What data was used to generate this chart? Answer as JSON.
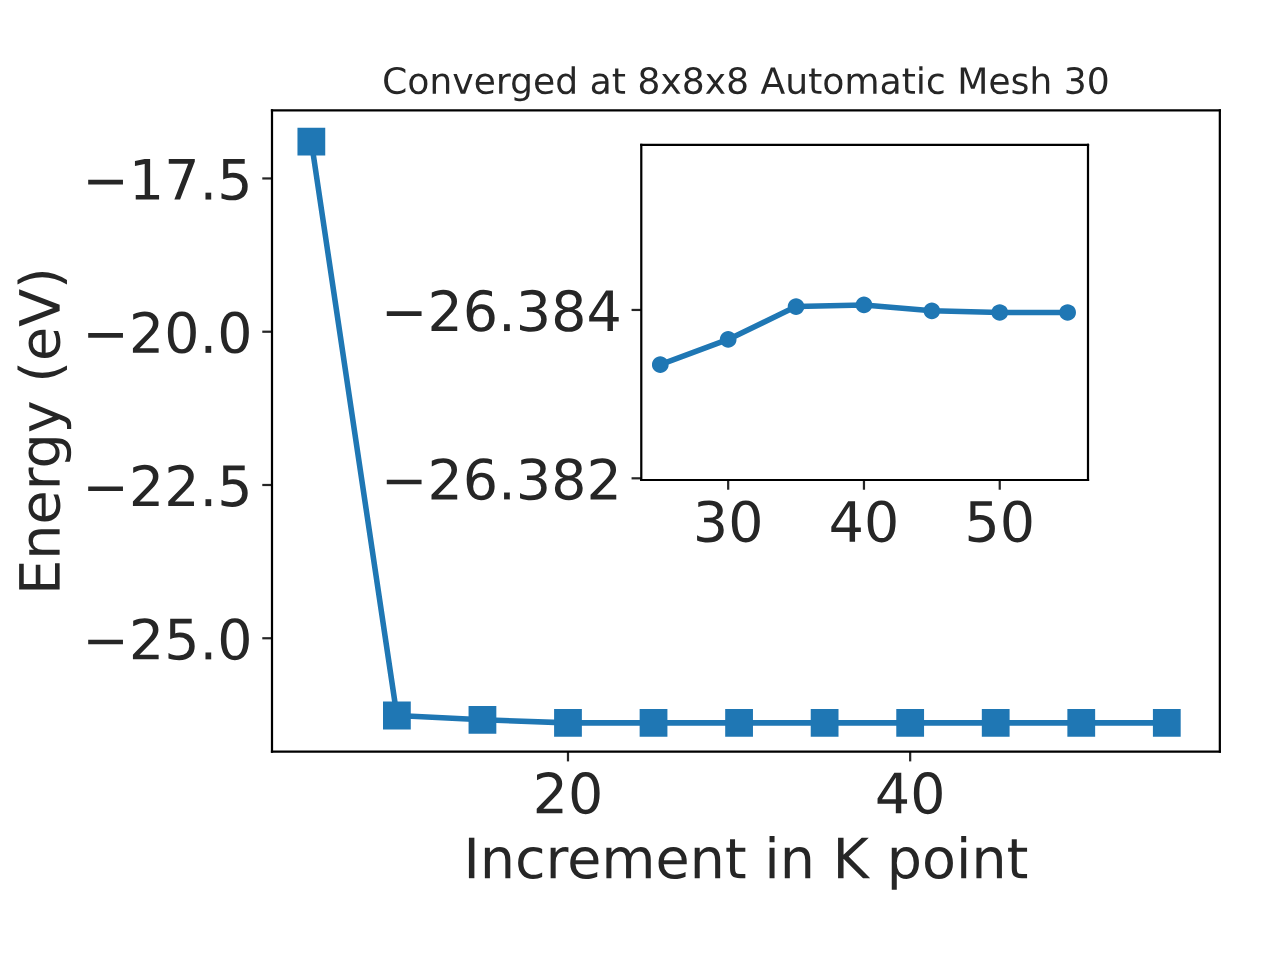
{
  "chart_data": [
    {
      "type": "line",
      "title": "Converged at 8x8x8 Automatic Mesh 30",
      "xlabel": "Increment in K point",
      "ylabel": "Energy (eV)",
      "x": [
        5,
        10,
        15,
        20,
        25,
        30,
        35,
        40,
        45,
        50,
        55
      ],
      "series": [
        {
          "color": "#1f77b4",
          "values": [
            -16.9,
            -26.26,
            -26.33,
            -26.38,
            -26.38,
            -26.38,
            -26.38,
            -26.38,
            -26.38,
            -26.38,
            -26.38
          ]
        }
      ],
      "marker": "square",
      "line_style": "solid",
      "grid": false,
      "legend": false,
      "xlim": [
        2.7,
        58.1
      ],
      "ylim": [
        -26.85,
        -16.39
      ],
      "xticks": [
        20,
        40
      ],
      "yticks": [
        {
          "value": -25.0,
          "label": "−25.0"
        },
        {
          "value": -22.5,
          "label": "−22.5"
        },
        {
          "value": -20.0,
          "label": "−20.0"
        },
        {
          "value": -17.5,
          "label": "−17.5"
        }
      ]
    },
    {
      "type": "line",
      "x": [
        25,
        30,
        35,
        40,
        45,
        50,
        55
      ],
      "series": [
        {
          "color": "#1f77b4",
          "values": [
            -26.38335,
            -26.38365,
            -26.38404,
            -26.38406,
            -26.38399,
            -26.38397,
            -26.38397
          ]
        }
      ],
      "marker": "circle",
      "line_style": "solid",
      "grid": false,
      "legend": false,
      "xlim": [
        23.6,
        56.5
      ],
      "ylim": [
        -26.38198,
        -26.38596
      ],
      "xticks": [
        30,
        40,
        50
      ],
      "yticks": [
        {
          "value": -26.384,
          "label": "−26.384"
        },
        {
          "value": -26.382,
          "label": "−26.382"
        }
      ]
    }
  ]
}
